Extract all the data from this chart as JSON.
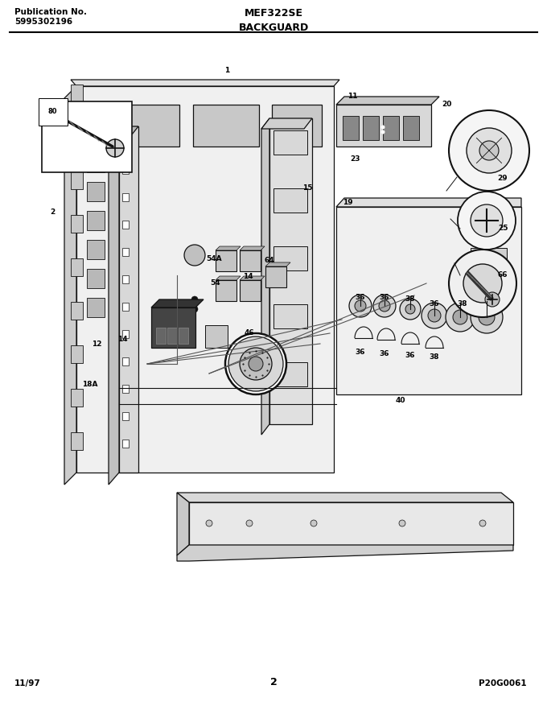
{
  "title_left_line1": "Publication No.",
  "title_left_line2": "5995302196",
  "title_center": "MEF322SE",
  "subtitle_center": "BACKGUARD",
  "footer_left": "11/97",
  "footer_center": "2",
  "footer_right": "P20G0061",
  "bg_color": "#ffffff",
  "fig_width": 6.8,
  "fig_height": 8.82,
  "dpi": 100
}
